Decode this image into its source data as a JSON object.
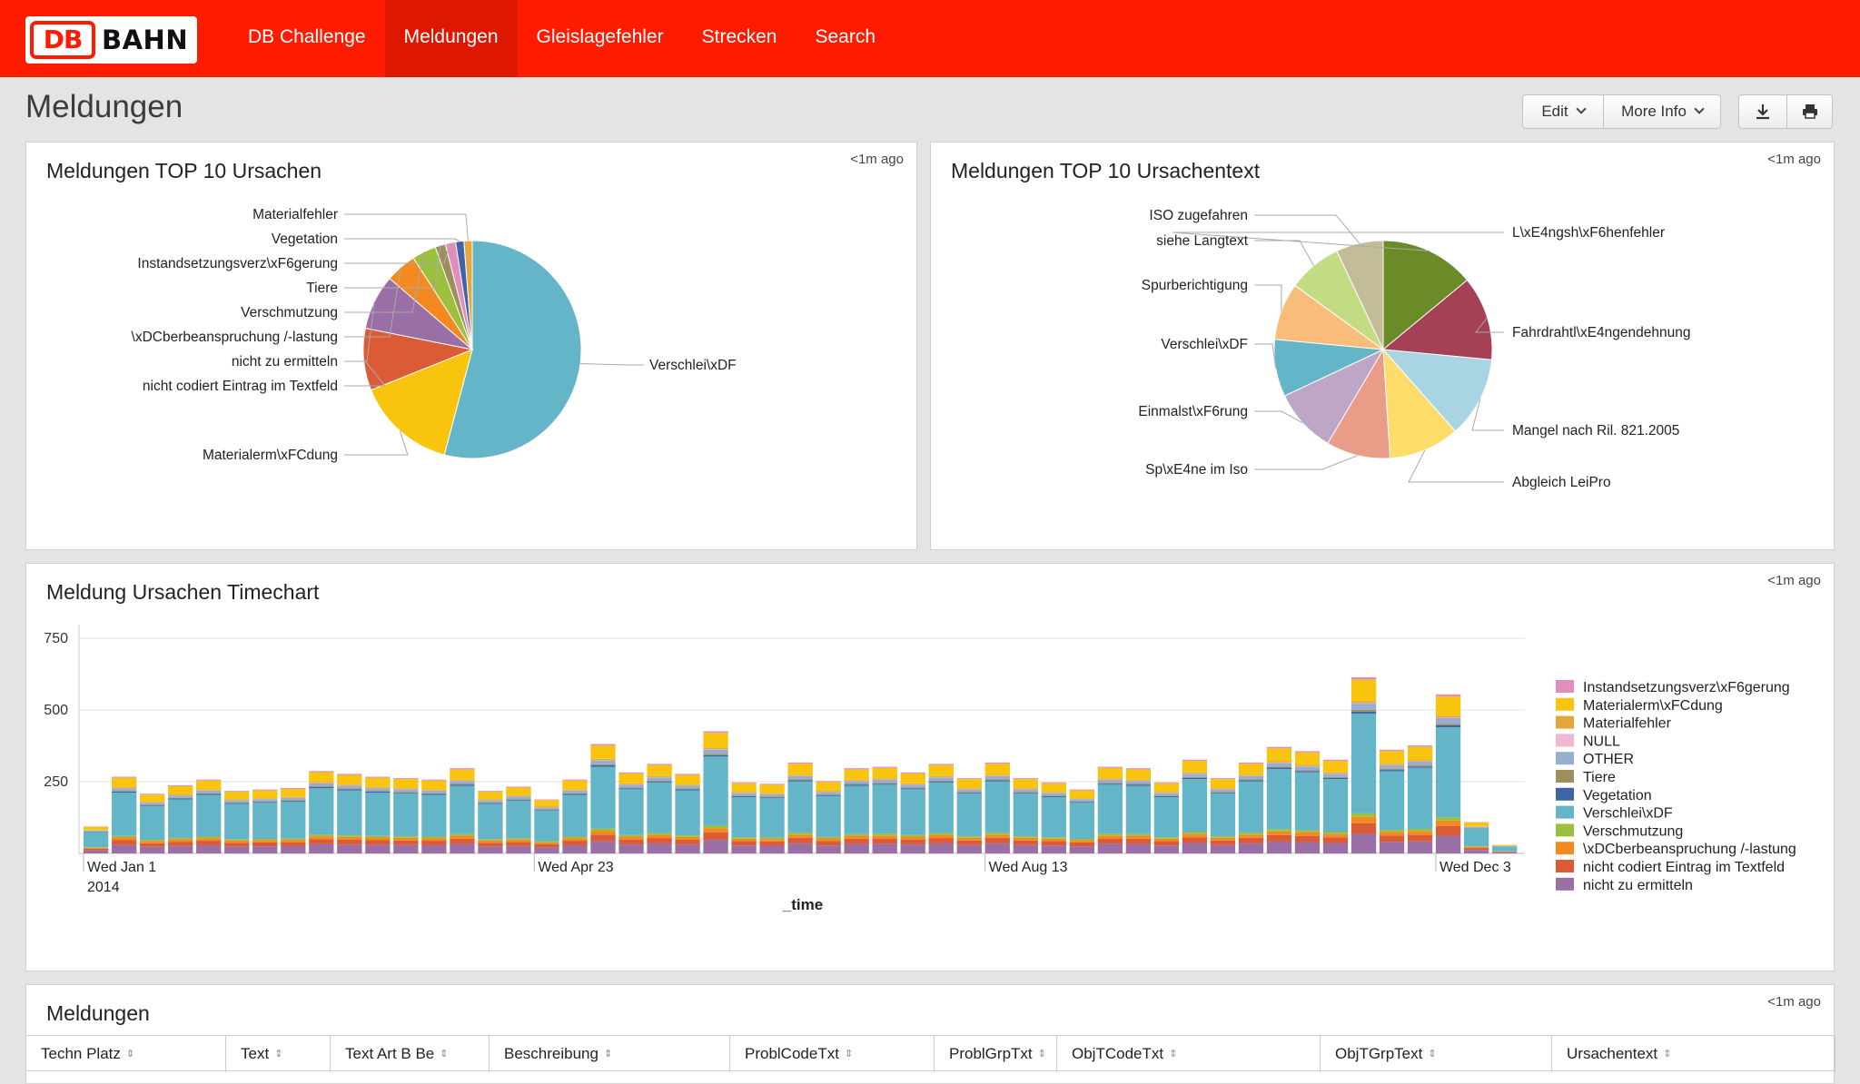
{
  "brand": {
    "db": "DB",
    "name": "BAHN"
  },
  "nav": {
    "items": [
      {
        "label": "DB Challenge",
        "active": false
      },
      {
        "label": "Meldungen",
        "active": true
      },
      {
        "label": "Gleislagefehler",
        "active": false
      },
      {
        "label": "Strecken",
        "active": false
      },
      {
        "label": "Search",
        "active": false
      }
    ]
  },
  "page": {
    "title": "Meldungen",
    "edit_label": "Edit",
    "more_info_label": "More Info",
    "download_icon": "download-icon",
    "print_icon": "print-icon"
  },
  "colors": {
    "nav_bg": "#ff1b00",
    "nav_active": "#dd1700"
  },
  "panels": {
    "pie1": {
      "title": "Meldungen TOP 10 Ursachen",
      "time": "<1m ago"
    },
    "pie2": {
      "title": "Meldungen TOP 10 Ursachentext",
      "time": "<1m ago"
    },
    "timechart": {
      "title": "Meldung Ursachen Timechart",
      "time": "<1m ago"
    },
    "table": {
      "title": "Meldungen",
      "time": "<1m ago"
    }
  },
  "table": {
    "columns": [
      "Techn Platz",
      "Text",
      "Text Art B Be",
      "Beschreibung",
      "ProblCodeTxt",
      "ProblGrpTxt",
      "ObjTCodeTxt",
      "ObjTGrpText",
      "Ursachentext"
    ]
  },
  "chart_data": [
    {
      "type": "pie",
      "title": "Meldungen TOP 10 Ursachen",
      "slices": [
        {
          "label": "Verschlei\\xDF",
          "value": 53.0,
          "color": "#65b5c9"
        },
        {
          "label": "Materialerm\\xFCdung",
          "value": 14.5,
          "color": "#f8c40e"
        },
        {
          "label": "nicht codiert Eintrag im Textfeld",
          "value": 9.0,
          "color": "#dc5b37"
        },
        {
          "label": "nicht zu ermitteln",
          "value": 8.0,
          "color": "#9a6fa6"
        },
        {
          "label": "\\xDCberbeanspruchung /-lastung",
          "value": 4.5,
          "color": "#f48a1f"
        },
        {
          "label": "Verschmutzung",
          "value": 3.5,
          "color": "#9cc03c"
        },
        {
          "label": "Tiere",
          "value": 1.5,
          "color": "#9d8f5b"
        },
        {
          "label": "Instandsetzungsverz\\xF6gerung",
          "value": 1.5,
          "color": "#df8ebd"
        },
        {
          "label": "Vegetation",
          "value": 1.2,
          "color": "#3f65a8"
        },
        {
          "label": "Materialfehler",
          "value": 1.2,
          "color": "#e5a73d"
        }
      ]
    },
    {
      "type": "pie",
      "title": "Meldungen TOP 10 Ursachentext",
      "slices": [
        {
          "label": "L\\xE4ngsh\\xF6henfehler",
          "value": 14.0,
          "color": "#6b8b29"
        },
        {
          "label": "Fahrdrahtl\\xE4ngendehnung",
          "value": 12.5,
          "color": "#a44154"
        },
        {
          "label": "Mangel nach Ril. 821.2005",
          "value": 12.0,
          "color": "#a9d4e4"
        },
        {
          "label": "Abgleich LeiPro",
          "value": 10.5,
          "color": "#fddc6a"
        },
        {
          "label": "Sp\\xE4ne im Iso",
          "value": 9.5,
          "color": "#e99c88"
        },
        {
          "label": "Einmalst\\xF6rung",
          "value": 9.5,
          "color": "#bda6c6"
        },
        {
          "label": "Verschlei\\xDF",
          "value": 8.5,
          "color": "#65b5c9"
        },
        {
          "label": "Spurberichtigung",
          "value": 8.5,
          "color": "#f9bd7b"
        },
        {
          "label": "siehe Langtext",
          "value": 8.0,
          "color": "#c3dc84"
        },
        {
          "label": "ISO zugefahren",
          "value": 7.0,
          "color": "#c3bc99"
        }
      ]
    },
    {
      "type": "bar",
      "stacked": true,
      "title": "Meldung Ursachen Timechart",
      "xlabel": "_time",
      "ylabel": "",
      "ylim": [
        0,
        750
      ],
      "y_ticks": [
        "250",
        "500",
        "750"
      ],
      "x_tick_labels": [
        {
          "label": "Wed Jan 1",
          "sub": "2014",
          "index": 0
        },
        {
          "label": "Wed Apr 23",
          "index": 16
        },
        {
          "label": "Wed Aug 13",
          "index": 32
        },
        {
          "label": "Wed Dec 3",
          "index": 48
        }
      ],
      "legend_position": "right",
      "series": [
        {
          "name": "nicht zu ermitteln",
          "color": "#9a6fa6"
        },
        {
          "name": "nicht codiert Eintrag im Textfeld",
          "color": "#dc5b37"
        },
        {
          "name": "\\xDCberbeanspruchung /-lastung",
          "color": "#f48a1f"
        },
        {
          "name": "Verschmutzung",
          "color": "#9cc03c"
        },
        {
          "name": "Verschlei\\xDF",
          "color": "#65b5c9"
        },
        {
          "name": "Vegetation",
          "color": "#3f65a8"
        },
        {
          "name": "Tiere",
          "color": "#9d8f5b"
        },
        {
          "name": "OTHER",
          "color": "#97aed3"
        },
        {
          "name": "NULL",
          "color": "#f0b8d2"
        },
        {
          "name": "Materialfehler",
          "color": "#e5a73d"
        },
        {
          "name": "Materialerm\\xFCdung",
          "color": "#f8c40e"
        },
        {
          "name": "Instandsetzungsverz\\xF6gerung",
          "color": "#df8ebd"
        }
      ],
      "legend_order": [
        "Instandsetzungsverz\\xF6gerung",
        "Materialerm\\xFCdung",
        "Materialfehler",
        "NULL",
        "OTHER",
        "Tiere",
        "Vegetation",
        "Verschlei\\xDF",
        "Verschmutzung",
        "\\xDCberbeanspruchung /-lastung",
        "nicht codiert Eintrag im Textfeld",
        "nicht zu ermitteln"
      ],
      "totals": [
        95,
        270,
        210,
        240,
        260,
        220,
        225,
        230,
        290,
        280,
        270,
        265,
        260,
        300,
        220,
        235,
        190,
        260,
        385,
        285,
        315,
        280,
        430,
        250,
        245,
        320,
        255,
        300,
        305,
        285,
        315,
        265,
        320,
        265,
        250,
        225,
        305,
        300,
        250,
        330,
        265,
        320,
        375,
        360,
        330,
        620,
        365,
        380,
        560,
        110,
        30
      ]
    }
  ]
}
